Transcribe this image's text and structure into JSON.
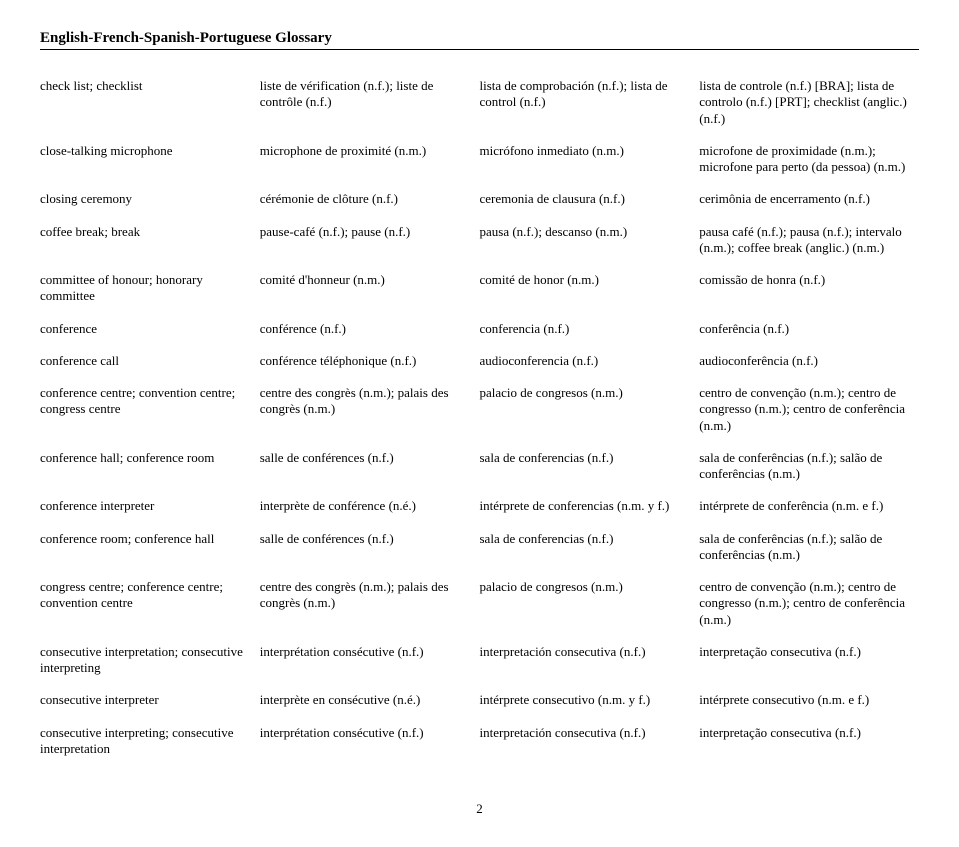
{
  "title": "English-French-Spanish-Portuguese Glossary",
  "page_number": "2",
  "rows": [
    {
      "en": "check list; checklist",
      "fr": "liste de vérification (n.f.); liste de contrôle (n.f.)",
      "es": "lista de comprobación (n.f.); lista de control (n.f.)",
      "pt": "lista de controle (n.f.) [BRA]; lista de controlo (n.f.) [PRT]; checklist (anglic.) (n.f.)"
    },
    {
      "en": "close-talking microphone",
      "fr": "microphone de proximité (n.m.)",
      "es": "micrófono inmediato (n.m.)",
      "pt": "microfone de proximidade (n.m.); microfone para perto (da pessoa) (n.m.)"
    },
    {
      "en": "closing ceremony",
      "fr": "cérémonie de clôture (n.f.)",
      "es": "ceremonia de clausura (n.f.)",
      "pt": "cerimônia de encerramento (n.f.)"
    },
    {
      "en": "coffee break; break",
      "fr": "pause-café (n.f.); pause (n.f.)",
      "es": "pausa (n.f.); descanso (n.m.)",
      "pt": "pausa café (n.f.); pausa (n.f.); intervalo (n.m.); coffee break (anglic.) (n.m.)"
    },
    {
      "en": "committee of honour; honorary committee",
      "fr": "comité d'honneur (n.m.)",
      "es": "comité de honor (n.m.)",
      "pt": "comissão de honra (n.f.)"
    },
    {
      "en": "conference",
      "fr": "conférence (n.f.)",
      "es": "conferencia (n.f.)",
      "pt": "conferência (n.f.)"
    },
    {
      "en": "conference call",
      "fr": "conférence téléphonique (n.f.)",
      "es": "audioconferencia (n.f.)",
      "pt": "audioconferência (n.f.)"
    },
    {
      "en": "conference centre; convention centre; congress centre",
      "fr": "centre des congrès (n.m.); palais des congrès (n.m.)",
      "es": "palacio de congresos (n.m.)",
      "pt": "centro de convenção (n.m.); centro de congresso (n.m.); centro de conferência (n.m.)"
    },
    {
      "en": "conference hall; conference room",
      "fr": "salle de conférences (n.f.)",
      "es": "sala de conferencias (n.f.)",
      "pt": "sala de conferências (n.f.); salão de conferências (n.m.)"
    },
    {
      "en": "conference interpreter",
      "fr": "interprète de conférence (n.é.)",
      "es": "intérprete de conferencias (n.m. y f.)",
      "pt": "intérprete de conferência (n.m. e f.)"
    },
    {
      "en": "conference room; conference hall",
      "fr": "salle de conférences (n.f.)",
      "es": "sala de conferencias (n.f.)",
      "pt": "sala de conferências (n.f.); salão de conferências (n.m.)"
    },
    {
      "en": "congress centre; conference centre; convention centre",
      "fr": "centre des congrès (n.m.); palais des congrès (n.m.)",
      "es": "palacio de congresos (n.m.)",
      "pt": "centro de convenção (n.m.); centro de congresso (n.m.); centro de conferência (n.m.)"
    },
    {
      "en": "consecutive interpretation; consecutive interpreting",
      "fr": "interprétation consécutive (n.f.)",
      "es": "interpretación consecutiva (n.f.)",
      "pt": "interpretação consecutiva (n.f.)"
    },
    {
      "en": "consecutive interpreter",
      "fr": "interprète en consécutive (n.é.)",
      "es": "intérprete consecutivo (n.m. y f.)",
      "pt": "intérprete consecutivo (n.m. e f.)"
    },
    {
      "en": "consecutive interpreting; consecutive interpretation",
      "fr": "interprétation consécutive (n.f.)",
      "es": "interpretación consecutiva (n.f.)",
      "pt": "interpretação consecutiva (n.f.)"
    }
  ]
}
